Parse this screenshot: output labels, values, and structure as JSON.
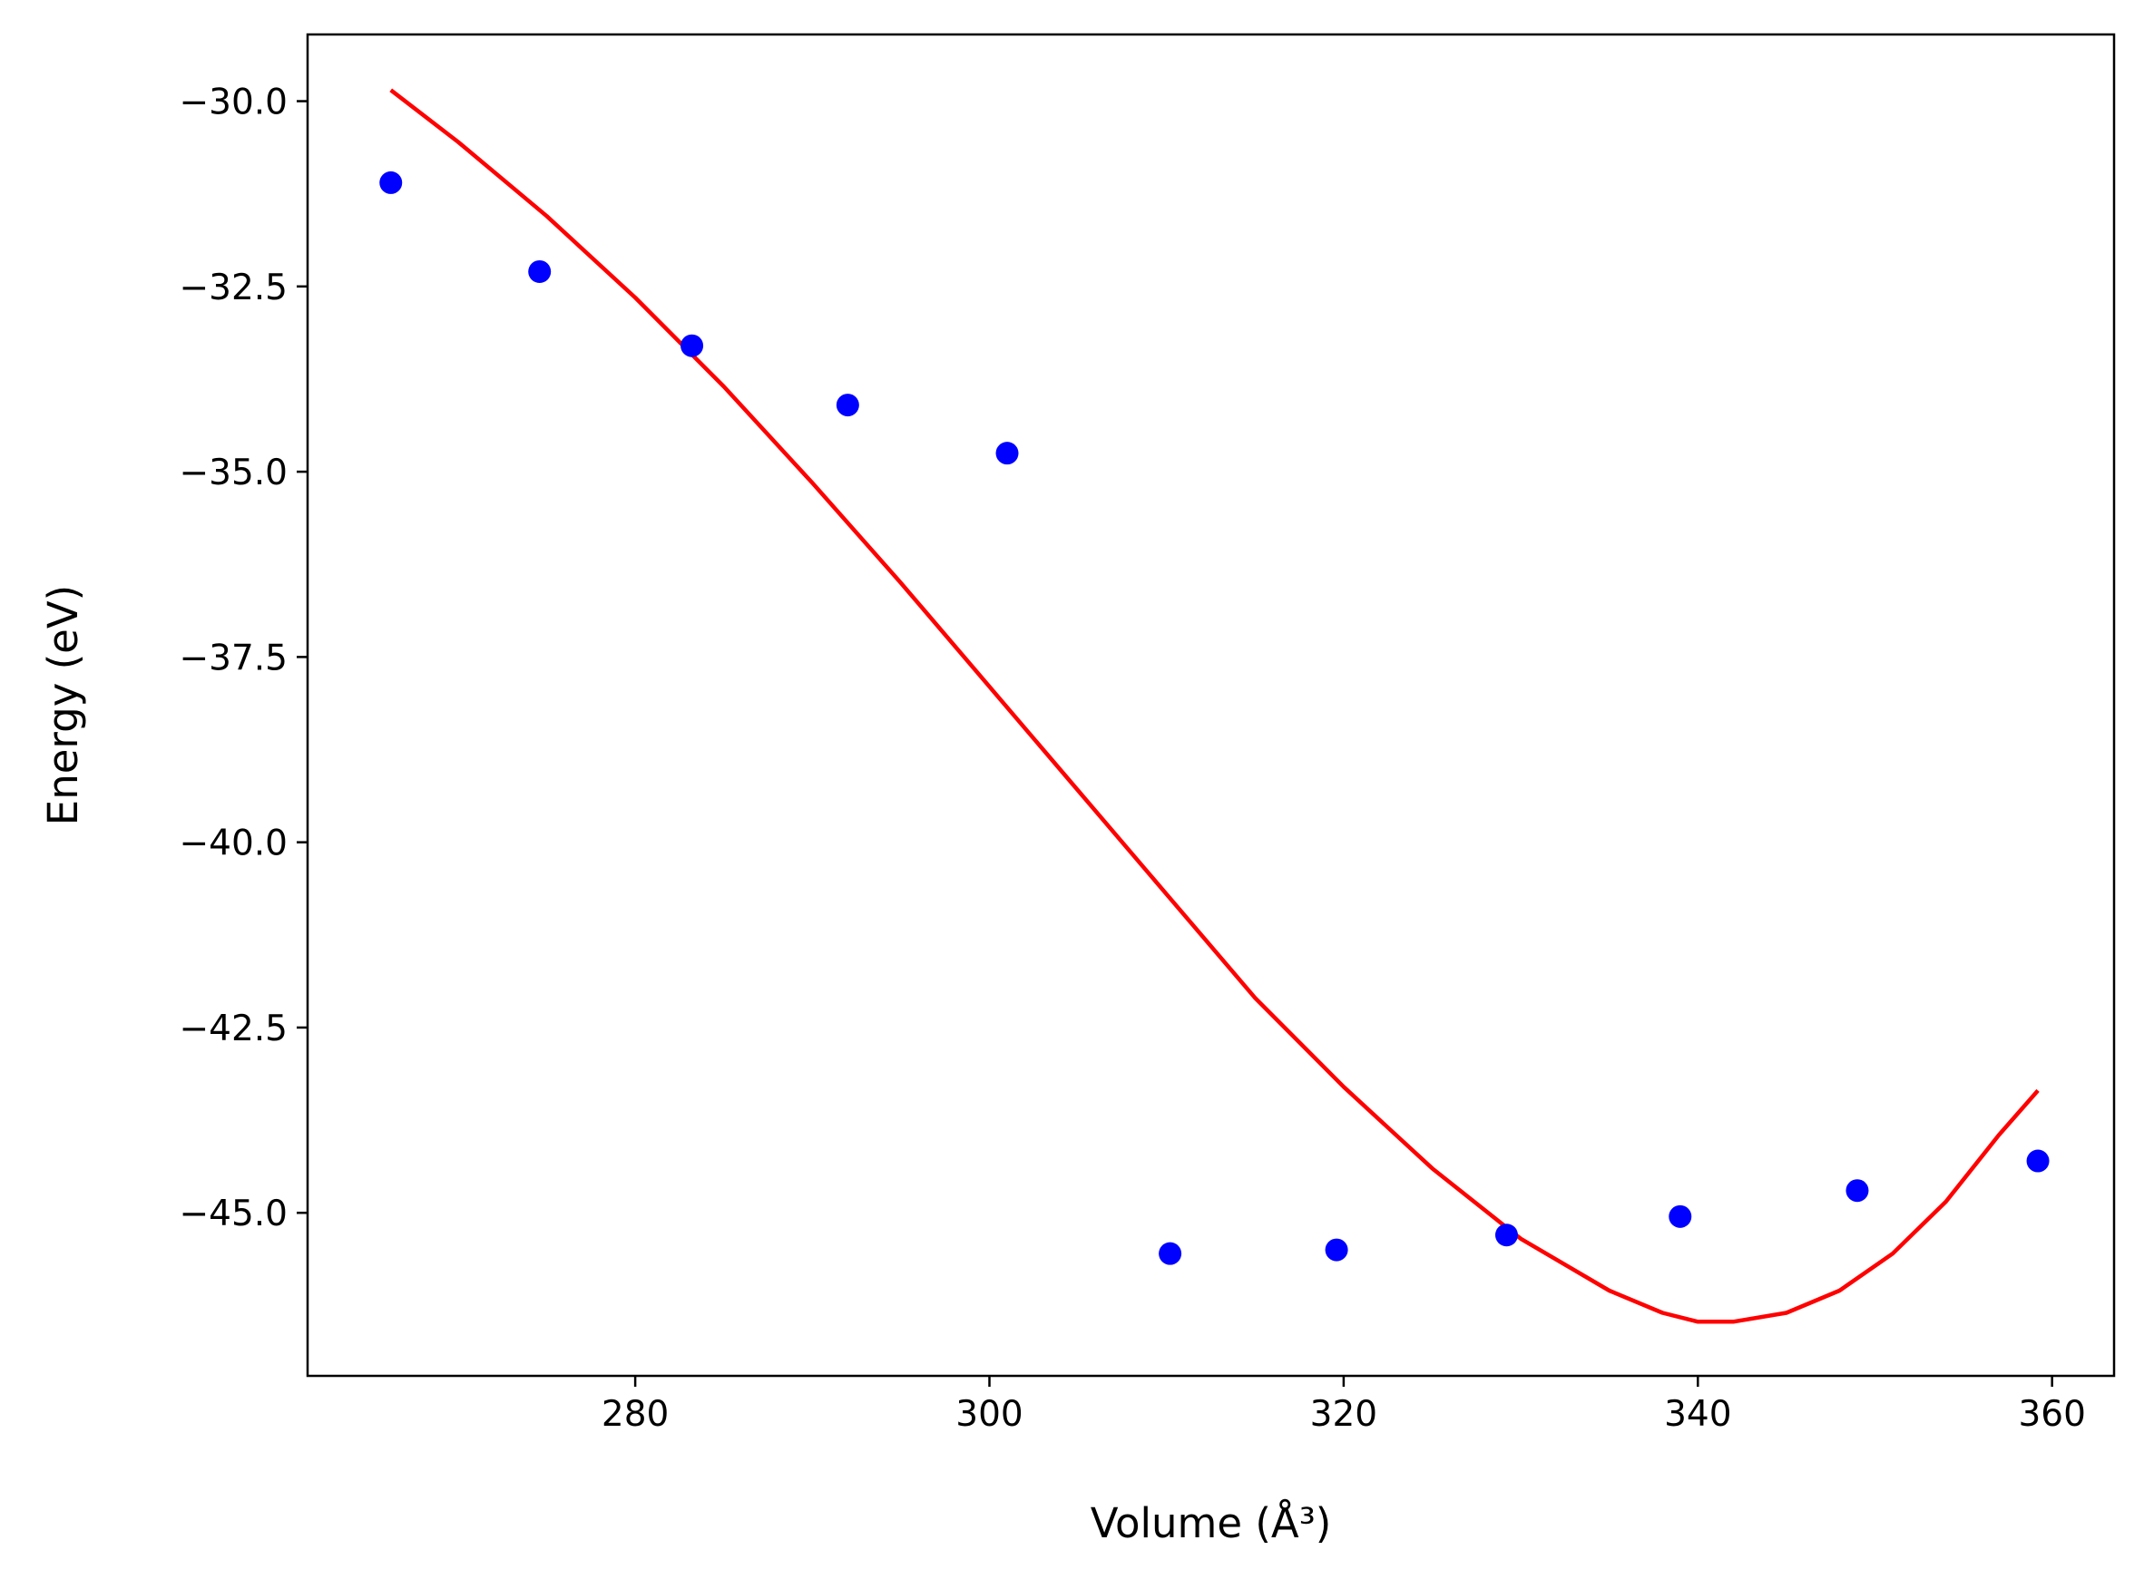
{
  "chart_data": {
    "type": "scatter",
    "xlabel": "Volume (Å³)",
    "ylabel": "Energy (eV)",
    "xlim": [
      261.5,
      363.5
    ],
    "ylim": [
      -47.2,
      -29.1
    ],
    "xticks": [
      280,
      300,
      320,
      340,
      360
    ],
    "xtick_labels": [
      "280",
      "300",
      "320",
      "340",
      "360"
    ],
    "yticks": [
      -30.0,
      -32.5,
      -35.0,
      -37.5,
      -40.0,
      -42.5,
      -45.0
    ],
    "ytick_labels": [
      "−30.0",
      "−32.5",
      "−35.0",
      "−37.5",
      "−40.0",
      "−42.5",
      "−45.0"
    ],
    "grid": false,
    "series": [
      {
        "kind": "scatter",
        "color": "#0000ff",
        "x": [
          266.2,
          274.6,
          283.2,
          292.0,
          301.0,
          310.2,
          319.6,
          329.2,
          339.0,
          349.0,
          359.2
        ],
        "y": [
          -31.1,
          -32.3,
          -33.3,
          -34.1,
          -34.75,
          -45.55,
          -45.5,
          -45.3,
          -45.05,
          -44.7,
          -44.3
        ]
      },
      {
        "kind": "line",
        "color": "#ff0000",
        "x": [
          266.2,
          270,
          275,
          280,
          285,
          290,
          295,
          300,
          305,
          310,
          315,
          320,
          325,
          330,
          335,
          338,
          340,
          342,
          345,
          348,
          351,
          354,
          357,
          359.2
        ],
        "y": [
          -29.85,
          -30.55,
          -31.55,
          -32.65,
          -33.85,
          -35.15,
          -36.5,
          -37.9,
          -39.3,
          -40.7,
          -42.1,
          -43.3,
          -44.4,
          -45.35,
          -46.05,
          -46.35,
          -46.47,
          -46.47,
          -46.35,
          -46.05,
          -45.55,
          -44.85,
          -43.95,
          -43.35
        ]
      }
    ]
  }
}
